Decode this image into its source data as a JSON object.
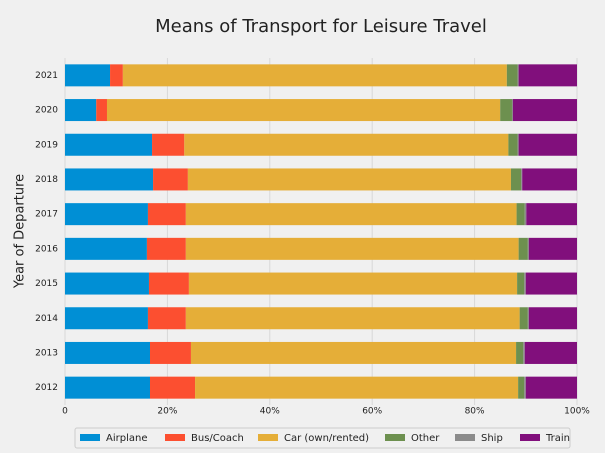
{
  "chart_data": {
    "type": "stacked_barh",
    "title": "Means of Transport for Leisure Travel",
    "y_label": "Year of Departure",
    "categories": [
      "2012",
      "2013",
      "2014",
      "2015",
      "2016",
      "2017",
      "2018",
      "2019",
      "2020",
      "2021"
    ],
    "series": [
      {
        "name": "Airplane",
        "color": "#008fd5",
        "values": [
          16.6,
          16.6,
          16.2,
          16.4,
          16.0,
          16.2,
          17.2,
          17.0,
          6.1,
          8.8
        ]
      },
      {
        "name": "Bus/Coach",
        "color": "#fc4f30",
        "values": [
          8.8,
          8.0,
          7.4,
          7.8,
          7.6,
          7.4,
          6.8,
          6.3,
          2.1,
          2.5
        ]
      },
      {
        "name": "Car (own/rented)",
        "color": "#e5ae38",
        "values": [
          63.1,
          63.5,
          65.2,
          64.1,
          65.0,
          64.6,
          63.1,
          63.3,
          76.8,
          75.0
        ]
      },
      {
        "name": "Other",
        "color": "#6d904f",
        "values": [
          1.2,
          1.4,
          1.6,
          1.4,
          1.8,
          1.6,
          2.0,
          1.8,
          2.3,
          2.1
        ]
      },
      {
        "name": "Ship",
        "color": "#8b8b8b",
        "values": [
          0.3,
          0.3,
          0.2,
          0.3,
          0.2,
          0.3,
          0.2,
          0.2,
          0.2,
          0.2
        ]
      },
      {
        "name": "Train",
        "color": "#810f7c",
        "values": [
          10.0,
          10.2,
          9.4,
          10.0,
          9.4,
          9.9,
          10.7,
          11.4,
          12.5,
          11.4
        ]
      }
    ],
    "xlim": [
      0,
      100
    ],
    "xticks": [
      0,
      {
        "value": 20,
        "label": "20%"
      },
      {
        "value": 40,
        "label": "40%"
      },
      {
        "value": 60,
        "label": "60%"
      },
      {
        "value": 80,
        "label": "80%"
      },
      {
        "value": 100,
        "label": "100%"
      }
    ],
    "legend": "bottom"
  }
}
